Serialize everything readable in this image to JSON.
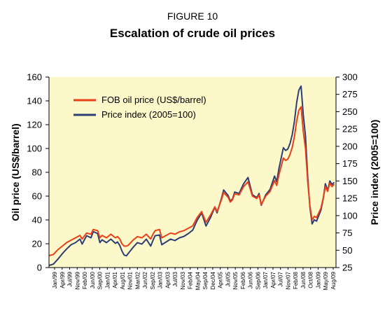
{
  "header": {
    "figure_label": "FIGURE 10",
    "title": "Escalation of crude oil prices"
  },
  "colors": {
    "plot_bg": "#fdf8c9",
    "series_oil": "#e8411a",
    "series_index": "#2c3e75"
  },
  "chart_data": {
    "type": "line",
    "title": "Escalation of crude oil prices",
    "ylabel": "Oil price (US$/barrel)",
    "y2label": "Price index (2005=100)",
    "ylim": [
      0,
      160
    ],
    "y2lim": [
      25,
      300
    ],
    "yticks": [
      0,
      20,
      40,
      60,
      80,
      100,
      120,
      140,
      160
    ],
    "y2ticks": [
      25,
      50,
      75,
      100,
      125,
      150,
      175,
      200,
      225,
      250,
      275,
      300
    ],
    "grid": false,
    "legend_position": "top-left",
    "x_tick_labels": [
      "Jan/99",
      "Apr/99",
      "Jul/99",
      "Nov/99",
      "Feb/00",
      "Jun/00",
      "Sep/00",
      "Jan/01",
      "Apr/01",
      "Aug/01",
      "Nov/01",
      "Mar/02",
      "Jun/02",
      "Sep/02",
      "Jan/03",
      "Apr/03",
      "Jul/03",
      "Nov/03",
      "Feb/04",
      "May/04",
      "Sep/04",
      "Dec/04",
      "Apr/05",
      "Jul/05",
      "Nov/05",
      "Feb/06",
      "Jun/06",
      "Sep/06",
      "Jan/07",
      "Apr/07",
      "Jul/07",
      "Nov/07",
      "Feb/08",
      "Jun/08",
      "Oct/08",
      "Jan/09",
      "May/09",
      "Aug/09"
    ],
    "series": [
      {
        "name": "FOB oil price  (US$/barrel)",
        "axis": "left",
        "points": [
          [
            "1999-01",
            10
          ],
          [
            "1999-03",
            11
          ],
          [
            "1999-05",
            15
          ],
          [
            "1999-07",
            18
          ],
          [
            "1999-09",
            21
          ],
          [
            "1999-11",
            23
          ],
          [
            "2000-01",
            25
          ],
          [
            "2000-03",
            27
          ],
          [
            "2000-04",
            24
          ],
          [
            "2000-06",
            29
          ],
          [
            "2000-08",
            28
          ],
          [
            "2000-09",
            32
          ],
          [
            "2000-11",
            31
          ],
          [
            "2000-12",
            25
          ],
          [
            "2001-01",
            27
          ],
          [
            "2001-03",
            25
          ],
          [
            "2001-05",
            28
          ],
          [
            "2001-07",
            25
          ],
          [
            "2001-08",
            26
          ],
          [
            "2001-09",
            24
          ],
          [
            "2001-10",
            20
          ],
          [
            "2001-11",
            18
          ],
          [
            "2001-12",
            18
          ],
          [
            "2002-01",
            19
          ],
          [
            "2002-03",
            23
          ],
          [
            "2002-05",
            26
          ],
          [
            "2002-07",
            25
          ],
          [
            "2002-09",
            28
          ],
          [
            "2002-11",
            24
          ],
          [
            "2002-12",
            28
          ],
          [
            "2003-01",
            31
          ],
          [
            "2003-03",
            32
          ],
          [
            "2003-04",
            25
          ],
          [
            "2003-06",
            27
          ],
          [
            "2003-08",
            29
          ],
          [
            "2003-10",
            28
          ],
          [
            "2003-12",
            30
          ],
          [
            "2004-02",
            31
          ],
          [
            "2004-04",
            33
          ],
          [
            "2004-06",
            35
          ],
          [
            "2004-08",
            42
          ],
          [
            "2004-10",
            47
          ],
          [
            "2004-12",
            38
          ],
          [
            "2005-02",
            44
          ],
          [
            "2005-04",
            51
          ],
          [
            "2005-05",
            47
          ],
          [
            "2005-07",
            57
          ],
          [
            "2005-08",
            63
          ],
          [
            "2005-10",
            59
          ],
          [
            "2005-11",
            55
          ],
          [
            "2005-12",
            57
          ],
          [
            "2006-01",
            62
          ],
          [
            "2006-03",
            61
          ],
          [
            "2006-05",
            68
          ],
          [
            "2006-07",
            72
          ],
          [
            "2006-09",
            60
          ],
          [
            "2006-11",
            58
          ],
          [
            "2006-12",
            61
          ],
          [
            "2007-01",
            53
          ],
          [
            "2007-03",
            60
          ],
          [
            "2007-05",
            64
          ],
          [
            "2007-07",
            73
          ],
          [
            "2007-08",
            69
          ],
          [
            "2007-09",
            78
          ],
          [
            "2007-11",
            92
          ],
          [
            "2007-12",
            90
          ],
          [
            "2008-01",
            91
          ],
          [
            "2008-02",
            95
          ],
          [
            "2008-03",
            101
          ],
          [
            "2008-04",
            110
          ],
          [
            "2008-05",
            123
          ],
          [
            "2008-06",
            132
          ],
          [
            "2008-07",
            135
          ],
          [
            "2008-08",
            114
          ],
          [
            "2008-09",
            100
          ],
          [
            "2008-10",
            72
          ],
          [
            "2008-11",
            52
          ],
          [
            "2008-12",
            40
          ],
          [
            "2009-01",
            43
          ],
          [
            "2009-02",
            42
          ],
          [
            "2009-03",
            46
          ],
          [
            "2009-04",
            50
          ],
          [
            "2009-05",
            58
          ],
          [
            "2009-06",
            68
          ],
          [
            "2009-07",
            64
          ],
          [
            "2009-08",
            71
          ],
          [
            "2009-09",
            68
          ],
          [
            "2009-10",
            70
          ]
        ]
      },
      {
        "name": "Price index (2005=100)",
        "axis": "right",
        "points": [
          [
            "1999-01",
            28
          ],
          [
            "1999-03",
            30
          ],
          [
            "1999-05",
            37
          ],
          [
            "1999-07",
            45
          ],
          [
            "1999-09",
            52
          ],
          [
            "1999-11",
            58
          ],
          [
            "2000-01",
            61
          ],
          [
            "2000-03",
            66
          ],
          [
            "2000-04",
            59
          ],
          [
            "2000-06",
            71
          ],
          [
            "2000-08",
            68
          ],
          [
            "2000-09",
            77
          ],
          [
            "2000-11",
            74
          ],
          [
            "2000-12",
            61
          ],
          [
            "2001-01",
            65
          ],
          [
            "2001-03",
            61
          ],
          [
            "2001-05",
            66
          ],
          [
            "2001-07",
            60
          ],
          [
            "2001-08",
            62
          ],
          [
            "2001-09",
            57
          ],
          [
            "2001-10",
            49
          ],
          [
            "2001-11",
            43
          ],
          [
            "2001-12",
            42
          ],
          [
            "2002-01",
            46
          ],
          [
            "2002-03",
            54
          ],
          [
            "2002-05",
            61
          ],
          [
            "2002-07",
            59
          ],
          [
            "2002-09",
            66
          ],
          [
            "2002-11",
            56
          ],
          [
            "2002-12",
            64
          ],
          [
            "2003-01",
            71
          ],
          [
            "2003-03",
            72
          ],
          [
            "2003-04",
            58
          ],
          [
            "2003-06",
            62
          ],
          [
            "2003-08",
            66
          ],
          [
            "2003-10",
            64
          ],
          [
            "2003-12",
            68
          ],
          [
            "2004-02",
            70
          ],
          [
            "2004-04",
            74
          ],
          [
            "2004-06",
            79
          ],
          [
            "2004-08",
            93
          ],
          [
            "2004-10",
            104
          ],
          [
            "2004-12",
            85
          ],
          [
            "2005-02",
            97
          ],
          [
            "2005-04",
            112
          ],
          [
            "2005-05",
            104
          ],
          [
            "2005-07",
            125
          ],
          [
            "2005-08",
            137
          ],
          [
            "2005-10",
            129
          ],
          [
            "2005-11",
            121
          ],
          [
            "2005-12",
            124
          ],
          [
            "2006-01",
            134
          ],
          [
            "2006-03",
            132
          ],
          [
            "2006-05",
            146
          ],
          [
            "2006-07",
            155
          ],
          [
            "2006-09",
            130
          ],
          [
            "2006-11",
            126
          ],
          [
            "2006-12",
            132
          ],
          [
            "2007-01",
            115
          ],
          [
            "2007-03",
            130
          ],
          [
            "2007-05",
            138
          ],
          [
            "2007-07",
            157
          ],
          [
            "2007-08",
            149
          ],
          [
            "2007-09",
            168
          ],
          [
            "2007-11",
            198
          ],
          [
            "2007-12",
            194
          ],
          [
            "2008-01",
            196
          ],
          [
            "2008-02",
            204
          ],
          [
            "2008-03",
            217
          ],
          [
            "2008-04",
            236
          ],
          [
            "2008-05",
            263
          ],
          [
            "2008-06",
            281
          ],
          [
            "2008-07",
            287
          ],
          [
            "2008-08",
            245
          ],
          [
            "2008-09",
            215
          ],
          [
            "2008-10",
            156
          ],
          [
            "2008-11",
            112
          ],
          [
            "2008-12",
            88
          ],
          [
            "2009-01",
            94
          ],
          [
            "2009-02",
            92
          ],
          [
            "2009-03",
            100
          ],
          [
            "2009-04",
            108
          ],
          [
            "2009-05",
            124
          ],
          [
            "2009-06",
            146
          ],
          [
            "2009-07",
            136
          ],
          [
            "2009-08",
            150
          ],
          [
            "2009-09",
            145
          ],
          [
            "2009-10",
            148
          ]
        ]
      }
    ]
  }
}
